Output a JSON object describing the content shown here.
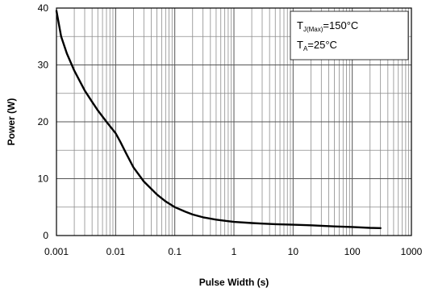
{
  "chart_data": {
    "type": "line",
    "xlabel": "Pulse Width (s)",
    "ylabel": "Power (W)",
    "xscale": "log",
    "xlim": [
      0.001,
      1000
    ],
    "ylim": [
      0,
      40
    ],
    "xticks": [
      "0.001",
      "0.01",
      "0.1",
      "1",
      "10",
      "100",
      "1000"
    ],
    "yticks": [
      "0",
      "10",
      "20",
      "30",
      "40"
    ],
    "grid": true,
    "annotation": {
      "line1_main": "T",
      "line1_sub": "J(Max)",
      "line1_rest": "=150°C",
      "line2_main": "T",
      "line2_sub": "A",
      "line2_rest": "=25°C",
      "placement": "top-right"
    },
    "series": [
      {
        "x": [
          0.001,
          0.0012,
          0.0015,
          0.002,
          0.003,
          0.004,
          0.005,
          0.007,
          0.01,
          0.012,
          0.015,
          0.02,
          0.03,
          0.05,
          0.07,
          0.1,
          0.15,
          0.2,
          0.3,
          0.5,
          0.7,
          1,
          2,
          3,
          5,
          10,
          20,
          50,
          100,
          200,
          300
        ],
        "y": [
          39.5,
          35,
          32,
          29,
          25.5,
          23.5,
          22,
          20,
          18,
          16.5,
          14.5,
          12,
          9.5,
          7.2,
          6,
          5,
          4.2,
          3.7,
          3.2,
          2.8,
          2.6,
          2.4,
          2.2,
          2.1,
          2.0,
          1.9,
          1.8,
          1.6,
          1.5,
          1.35,
          1.3
        ]
      }
    ]
  }
}
